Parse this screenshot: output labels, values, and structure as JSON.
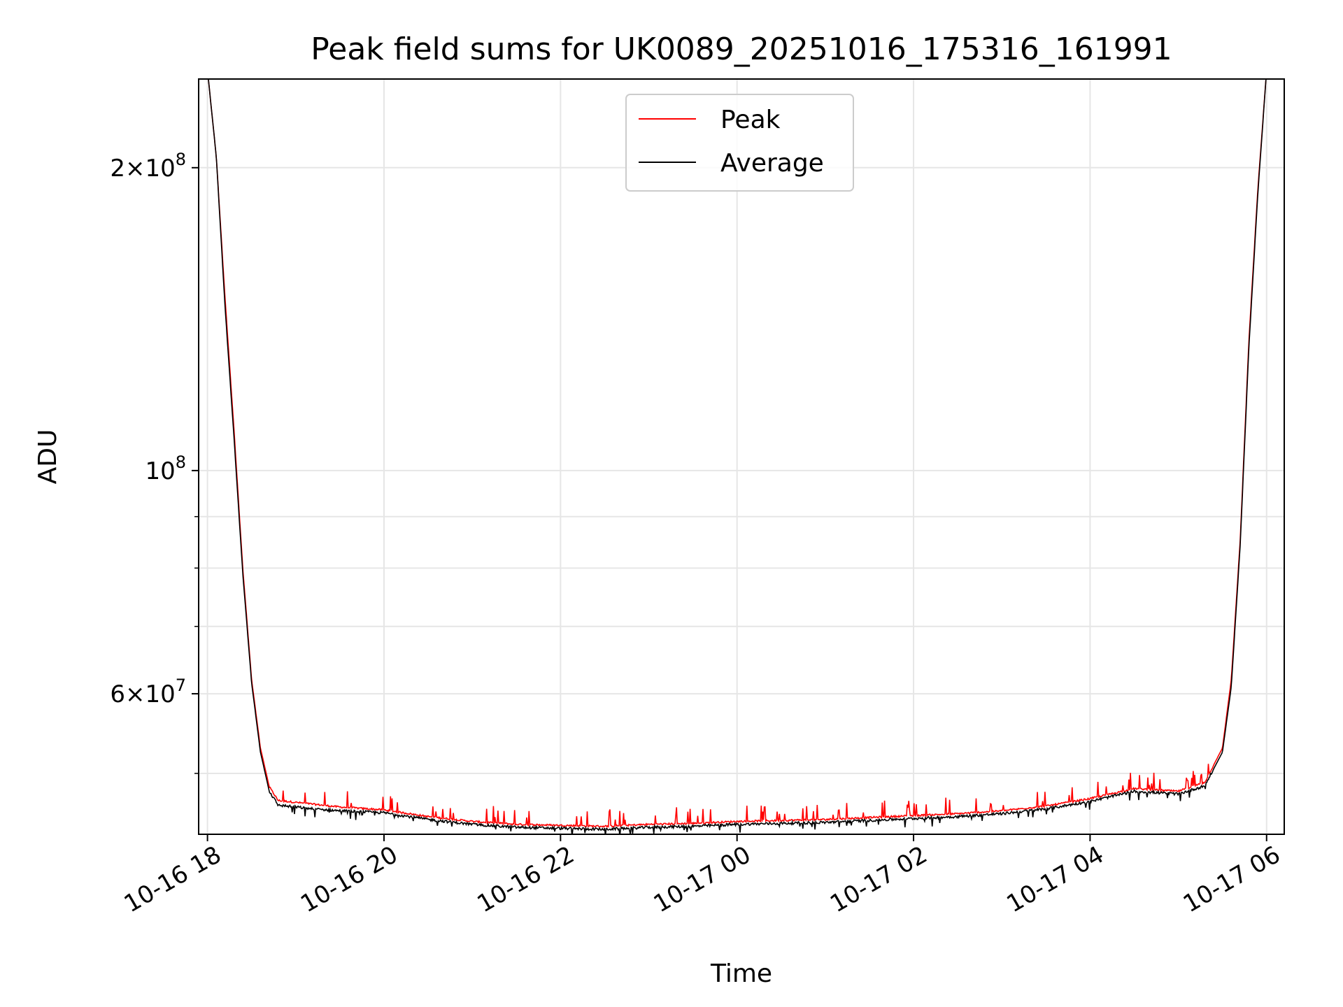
{
  "chart_data": {
    "type": "line",
    "title": "Peak field sums for UK0089_20251016_175316_161991",
    "xlabel": "Time",
    "ylabel": "ADU",
    "yscale": "log",
    "ylim": [
      43500000,
      245000000
    ],
    "xlim_hours": [
      -0.1,
      12.2
    ],
    "grid": true,
    "legend_position": "upper center",
    "x_ticks": [
      {
        "hour": 0,
        "label": "10-16 18"
      },
      {
        "hour": 2,
        "label": "10-16 20"
      },
      {
        "hour": 4,
        "label": "10-16 22"
      },
      {
        "hour": 6,
        "label": "10-17 00"
      },
      {
        "hour": 8,
        "label": "10-17 02"
      },
      {
        "hour": 10,
        "label": "10-17 04"
      },
      {
        "hour": 12,
        "label": "10-17 06"
      }
    ],
    "y_major_ticks": [
      {
        "value": 60000000,
        "mantissa": "6",
        "exponent": "7"
      },
      {
        "value": 100000000,
        "mantissa": "",
        "exponent": "8"
      },
      {
        "value": 200000000,
        "mantissa": "2",
        "exponent": "8"
      }
    ],
    "y_minor_ticks": [
      50000000,
      70000000,
      80000000,
      90000000
    ],
    "times_label": "hours after 10-16 18:00",
    "series": [
      {
        "name": "Peak",
        "color": "#ff0000",
        "x": [
          0,
          0.1,
          0.2,
          0.3,
          0.4,
          0.5,
          0.6,
          0.7,
          0.8,
          1.0,
          1.2,
          1.5,
          2.0,
          2.5,
          3.0,
          3.5,
          4.0,
          4.5,
          5.0,
          5.5,
          6.0,
          6.5,
          7.0,
          7.5,
          8.0,
          8.5,
          9.0,
          9.5,
          10.0,
          10.5,
          11.0,
          11.3,
          11.5,
          11.6,
          11.7,
          11.8,
          11.9,
          12.0
        ],
        "values": [
          250000000,
          205000000,
          148000000,
          110000000,
          80000000,
          62000000,
          53000000,
          48500000,
          47000000,
          46800000,
          46600000,
          46300000,
          46000000,
          45300000,
          44800000,
          44500000,
          44400000,
          44300000,
          44500000,
          44600000,
          44800000,
          44900000,
          45000000,
          45200000,
          45400000,
          45600000,
          45900000,
          46400000,
          47200000,
          48300000,
          48000000,
          49000000,
          53000000,
          62000000,
          85000000,
          135000000,
          190000000,
          250000000
        ]
      },
      {
        "name": "Average",
        "color": "#000000",
        "x": [
          0,
          0.1,
          0.2,
          0.3,
          0.4,
          0.5,
          0.6,
          0.7,
          0.8,
          1.0,
          1.2,
          1.5,
          2.0,
          2.5,
          3.0,
          3.5,
          4.0,
          4.5,
          5.0,
          5.5,
          6.0,
          6.5,
          7.0,
          7.5,
          8.0,
          8.5,
          9.0,
          9.5,
          10.0,
          10.5,
          11.0,
          11.3,
          11.5,
          11.6,
          11.7,
          11.8,
          11.9,
          12.0
        ],
        "values": [
          250000000,
          205000000,
          145000000,
          108000000,
          79000000,
          61500000,
          52500000,
          48000000,
          46500000,
          46300000,
          46100000,
          45900000,
          45700000,
          45000000,
          44500000,
          44200000,
          44100000,
          44000000,
          44200000,
          44300000,
          44500000,
          44600000,
          44700000,
          44900000,
          45100000,
          45300000,
          45600000,
          46100000,
          46900000,
          48000000,
          47700000,
          48600000,
          52500000,
          61000000,
          84000000,
          133000000,
          188000000,
          250000000
        ]
      }
    ]
  }
}
